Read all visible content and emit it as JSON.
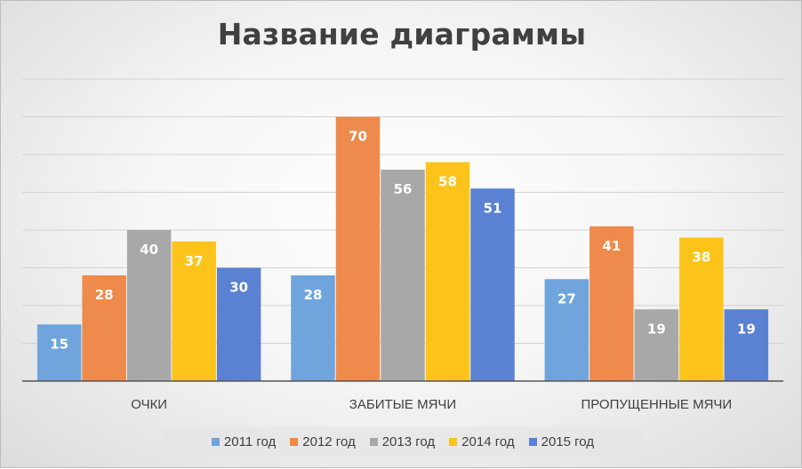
{
  "chart_data": {
    "type": "bar",
    "title": "Название диаграммы",
    "categories": [
      "ОЧКИ",
      "ЗАБИТЫЕ МЯЧИ",
      "ПРОПУЩЕННЫЕ МЯЧИ"
    ],
    "series": [
      {
        "name": "2011 год",
        "color": "#6fa5dc",
        "values": [
          15,
          28,
          27
        ]
      },
      {
        "name": "2012 год",
        "color": "#ee8a4c",
        "values": [
          28,
          70,
          41
        ]
      },
      {
        "name": "2013 год",
        "color": "#a8a8a8",
        "values": [
          40,
          56,
          19
        ]
      },
      {
        "name": "2014 год",
        "color": "#fcc41a",
        "values": [
          37,
          58,
          38
        ]
      },
      {
        "name": "2015 год",
        "color": "#5b82d2",
        "values": [
          30,
          51,
          19
        ]
      }
    ],
    "ylim": [
      0,
      80
    ],
    "grid": true,
    "legend": "bottom",
    "data_labels": true
  }
}
